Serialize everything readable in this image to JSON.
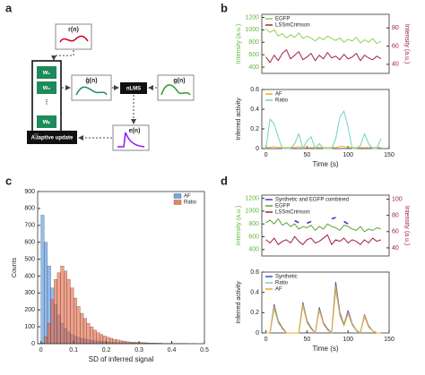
{
  "panel_labels": [
    "a",
    "b",
    "c",
    "d"
  ],
  "diagram": {
    "nodes": [
      "r(n)",
      "w₁",
      "w₂",
      "⋮",
      "wₖ",
      "ĝ(n)",
      "nLMS",
      "g(n)",
      "e(n)",
      "Adaptive update"
    ]
  },
  "chart_data": [
    {
      "type": "line",
      "ylabel": "Intensity (a.u.)",
      "y2label": "Intensity (a.u.)",
      "ycolor": "#5fb83a",
      "y2color": "#a3213f",
      "legend": "upper left",
      "x": [
        0,
        5,
        10,
        15,
        20,
        25,
        30,
        35,
        40,
        45,
        50,
        55,
        60,
        65,
        70,
        75,
        80,
        85,
        90,
        95,
        100,
        105,
        110,
        115,
        120,
        125,
        130,
        135,
        140
      ],
      "xlim": [
        -5,
        150
      ],
      "ylim": [
        300,
        1250
      ],
      "yticks": [
        400,
        600,
        800,
        1000,
        1200
      ],
      "y2lim": [
        30,
        95
      ],
      "y2ticks": [
        40,
        60,
        80
      ],
      "series": [
        {
          "name": "EGFP",
          "color": "#8fd14f",
          "values": [
            1020,
            960,
            1000,
            900,
            940,
            870,
            920,
            880,
            950,
            860,
            900,
            870,
            820,
            880,
            840,
            900,
            860,
            830,
            870,
            800,
            850,
            820,
            880,
            790,
            840,
            800,
            860,
            780,
            820
          ]
        },
        {
          "name": "LSSmCrimson",
          "color": "#a3213f",
          "axis": "y2",
          "values": [
            48,
            42,
            50,
            44,
            52,
            56,
            46,
            50,
            54,
            45,
            48,
            52,
            44,
            50,
            46,
            53,
            47,
            49,
            45,
            51,
            46,
            48,
            52,
            44,
            50,
            47,
            45,
            49,
            46
          ]
        }
      ]
    },
    {
      "type": "line",
      "ylabel": "Inferred activity",
      "xlabel": "Time (s)",
      "legend": "upper left",
      "x": [
        0,
        5,
        10,
        15,
        20,
        25,
        30,
        35,
        40,
        45,
        50,
        55,
        60,
        65,
        70,
        75,
        80,
        85,
        90,
        95,
        100,
        105,
        110,
        115,
        120,
        125,
        130,
        135,
        140
      ],
      "xlim": [
        -5,
        150
      ],
      "xticks": [
        0,
        50,
        100,
        150
      ],
      "ylim": [
        0,
        0.6
      ],
      "yticks": [
        0,
        0.2,
        0.4,
        0.6
      ],
      "series": [
        {
          "name": "AF",
          "color": "#f5a623",
          "values": [
            0.01,
            0.01,
            0.02,
            0.01,
            0.01,
            0.01,
            0.01,
            0.01,
            0.02,
            0.01,
            0.01,
            0.01,
            0.01,
            0.01,
            0.01,
            0.01,
            0.01,
            0.01,
            0.02,
            0.02,
            0.01,
            0.01,
            0.01,
            0.01,
            0.01,
            0.01,
            0.01,
            0.01,
            0.01
          ]
        },
        {
          "name": "Ratio",
          "color": "#6fd3c7",
          "values": [
            0,
            0.3,
            0.25,
            0.12,
            0,
            0,
            0,
            0.05,
            0.15,
            0,
            0.08,
            0.12,
            0,
            0.05,
            0,
            0,
            0,
            0.1,
            0.32,
            0.38,
            0.22,
            0,
            0,
            0.03,
            0.15,
            0.05,
            0,
            0,
            0.1
          ]
        }
      ]
    },
    {
      "type": "histogram",
      "xlabel": "SD of inferred signal",
      "ylabel": "Counts",
      "legend": "upper right",
      "bins": [
        0,
        0.01,
        0.02,
        0.03,
        0.04,
        0.05,
        0.06,
        0.07,
        0.08,
        0.09,
        0.1,
        0.11,
        0.12,
        0.13,
        0.14,
        0.15,
        0.16,
        0.17,
        0.18,
        0.19,
        0.2,
        0.21,
        0.22,
        0.23,
        0.24,
        0.25,
        0.26,
        0.27,
        0.28,
        0.29,
        0.3,
        0.31,
        0.32,
        0.33,
        0.34,
        0.35,
        0.36,
        0.37,
        0.38,
        0.39,
        0.4,
        0.41,
        0.42,
        0.43,
        0.44,
        0.45,
        0.46,
        0.47,
        0.48,
        0.49,
        0.5
      ],
      "xlim": [
        -0.01,
        0.5
      ],
      "xticks": [
        0,
        0.1,
        0.2,
        0.3,
        0.4,
        0.5
      ],
      "ylim": [
        0,
        900
      ],
      "yticks": [
        0,
        100,
        200,
        300,
        400,
        500,
        600,
        700,
        800,
        900
      ],
      "series": [
        {
          "name": "AF",
          "color": "#4a90e2",
          "values": [
            760,
            600,
            460,
            330,
            230,
            170,
            120,
            90,
            70,
            55,
            45,
            38,
            32,
            28,
            24,
            20,
            18,
            16,
            14,
            12,
            10,
            9,
            8,
            7,
            6,
            6,
            5,
            5,
            4,
            4,
            3,
            3,
            3,
            2,
            2,
            2,
            2,
            2,
            1,
            1,
            1,
            1,
            1,
            1,
            1,
            0,
            1,
            0,
            0,
            0
          ]
        },
        {
          "name": "Ratio",
          "color": "#e8603c",
          "values": [
            5,
            40,
            120,
            260,
            380,
            420,
            460,
            430,
            380,
            330,
            270,
            220,
            180,
            150,
            120,
            100,
            80,
            65,
            55,
            45,
            38,
            32,
            26,
            22,
            18,
            15,
            12,
            10,
            9,
            8,
            7,
            6,
            5,
            4,
            4,
            3,
            3,
            2,
            2,
            2,
            1,
            1,
            1,
            1,
            1,
            0,
            0,
            0,
            0,
            0
          ]
        }
      ]
    },
    {
      "type": "line",
      "ylabel": "Intensity (a.u.)",
      "y2label": "Intensity (a.u.)",
      "ycolor": "#5fb83a",
      "y2color": "#a3213f",
      "legend": "upper left",
      "x": [
        0,
        5,
        10,
        15,
        20,
        25,
        30,
        35,
        40,
        45,
        50,
        55,
        60,
        65,
        70,
        75,
        80,
        85,
        90,
        95,
        100,
        105,
        110,
        115,
        120,
        125,
        130,
        135,
        140
      ],
      "xlim": [
        -5,
        150
      ],
      "ylim": [
        300,
        1250
      ],
      "yticks": [
        400,
        600,
        800,
        1000,
        1200
      ],
      "y2lim": [
        30,
        105
      ],
      "y2ticks": [
        40,
        60,
        80,
        100
      ],
      "series": [
        {
          "name": "Synthetic and EGFP combined",
          "color": "#5b2bd6",
          "values": [
            null,
            null,
            null,
            null,
            null,
            null,
            null,
            850,
            820,
            null,
            810,
            840,
            null,
            null,
            null,
            null,
            880,
            900,
            null,
            840,
            800,
            null,
            null,
            null,
            null,
            null,
            null,
            null,
            null
          ]
        },
        {
          "name": "EGFP",
          "color": "#5f9e3a",
          "values": [
            820,
            860,
            800,
            880,
            780,
            820,
            760,
            800,
            720,
            760,
            740,
            780,
            700,
            760,
            720,
            800,
            760,
            740,
            700,
            780,
            760,
            720,
            700,
            760,
            680,
            720,
            700,
            740,
            720
          ]
        },
        {
          "name": "LSSmCrimson",
          "color": "#a3213f",
          "axis": "y2",
          "values": [
            50,
            46,
            52,
            44,
            48,
            50,
            46,
            54,
            48,
            44,
            50,
            52,
            46,
            48,
            52,
            56,
            44,
            50,
            48,
            52,
            46,
            50,
            48,
            44,
            50,
            46,
            52,
            48,
            50
          ]
        }
      ]
    },
    {
      "type": "line",
      "ylabel": "Inferred activity",
      "xlabel": "Time (s)",
      "legend": "upper left",
      "x": [
        0,
        5,
        10,
        15,
        20,
        25,
        30,
        35,
        40,
        45,
        50,
        55,
        60,
        65,
        70,
        75,
        80,
        85,
        90,
        95,
        100,
        105,
        110,
        115,
        120,
        125,
        130,
        135,
        140
      ],
      "xlim": [
        -5,
        150
      ],
      "xticks": [
        0,
        50,
        100,
        150
      ],
      "ylim": [
        0,
        0.6
      ],
      "yticks": [
        0,
        0.2,
        0.4,
        0.6
      ],
      "series": [
        {
          "name": "Synthetic",
          "color": "#3b4fd8",
          "values": [
            0,
            0,
            0.28,
            0.12,
            0.05,
            0,
            0,
            0,
            0,
            0.3,
            0.12,
            0.05,
            0,
            0.25,
            0.1,
            0.04,
            0,
            0.5,
            0.2,
            0.08,
            0.22,
            0.09,
            0.03,
            0,
            0.18,
            0.07,
            0.02,
            0,
            0
          ]
        },
        {
          "name": "Ratio",
          "color": "#6fd3c7",
          "values": [
            0,
            0,
            0.24,
            0.1,
            0.04,
            0,
            0,
            0,
            0,
            0.27,
            0.1,
            0.04,
            0,
            0.22,
            0.09,
            0.03,
            0,
            0.42,
            0.17,
            0.07,
            0.19,
            0.08,
            0.02,
            0,
            0.16,
            0.06,
            0.02,
            0,
            0
          ]
        },
        {
          "name": "AF",
          "color": "#f5a623",
          "values": [
            0,
            0,
            0.26,
            0.11,
            0.04,
            0,
            0,
            0,
            0,
            0.28,
            0.11,
            0.04,
            0,
            0.23,
            0.09,
            0.03,
            0,
            0.46,
            0.18,
            0.07,
            0.2,
            0.08,
            0.03,
            0,
            0.17,
            0.06,
            0.02,
            0,
            0
          ]
        }
      ]
    }
  ]
}
